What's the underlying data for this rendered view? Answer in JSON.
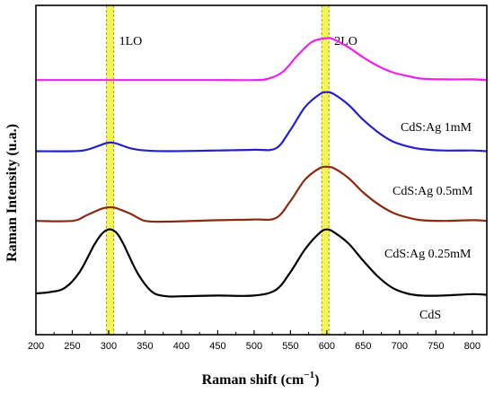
{
  "chart_data": {
    "type": "line",
    "xlabel": "Raman shift (cm",
    "xlabel_sup": "−1",
    "xlabel_close": ")",
    "ylabel": "Raman Intensity (u.a.)",
    "xlim": [
      200,
      820
    ],
    "x_ticks": [
      200,
      250,
      300,
      350,
      400,
      450,
      500,
      550,
      600,
      650,
      700,
      750,
      800
    ],
    "y_ticks_shown": false,
    "grid": false,
    "band_color": "#f2f23c",
    "band_edge_color": "#a8a800",
    "bands": [
      {
        "label": "1LO",
        "x": 302
      },
      {
        "label": "2LO",
        "x": 598
      }
    ],
    "series": [
      {
        "name": "CdS",
        "color": "#000000",
        "offset": 0,
        "x": [
          200,
          220,
          240,
          260,
          280,
          290,
          300,
          310,
          320,
          340,
          360,
          380,
          400,
          450,
          500,
          530,
          550,
          570,
          590,
          600,
          610,
          630,
          650,
          670,
          690,
          710,
          730,
          760,
          800,
          820
        ],
        "y": [
          0.1,
          0.12,
          0.18,
          0.4,
          0.78,
          0.93,
          1.0,
          0.96,
          0.8,
          0.38,
          0.12,
          0.06,
          0.06,
          0.07,
          0.07,
          0.15,
          0.4,
          0.72,
          0.95,
          1.0,
          0.96,
          0.8,
          0.56,
          0.34,
          0.18,
          0.1,
          0.07,
          0.07,
          0.09,
          0.08
        ]
      },
      {
        "name": "CdS:Ag 0.25mM",
        "color": "#8b2a10",
        "offset": 1.0,
        "x": [
          200,
          250,
          270,
          290,
          300,
          310,
          330,
          350,
          380,
          450,
          500,
          530,
          550,
          570,
          590,
          600,
          610,
          630,
          650,
          670,
          690,
          710,
          730,
          760,
          800,
          820
        ],
        "y": [
          0.12,
          0.12,
          0.2,
          0.29,
          0.31,
          0.3,
          0.22,
          0.12,
          0.11,
          0.13,
          0.14,
          0.16,
          0.4,
          0.7,
          0.86,
          0.88,
          0.86,
          0.72,
          0.52,
          0.36,
          0.24,
          0.17,
          0.13,
          0.12,
          0.13,
          0.12
        ]
      },
      {
        "name": "CdS:Ag 0.5mM",
        "color": "#2222cc",
        "offset": 2.0,
        "x": [
          200,
          250,
          270,
          290,
          300,
          310,
          330,
          350,
          380,
          450,
          500,
          530,
          550,
          570,
          590,
          600,
          610,
          630,
          650,
          670,
          690,
          710,
          730,
          760,
          800,
          820
        ],
        "y": [
          0.1,
          0.1,
          0.12,
          0.19,
          0.22,
          0.21,
          0.14,
          0.11,
          0.1,
          0.11,
          0.12,
          0.14,
          0.4,
          0.72,
          0.9,
          0.93,
          0.9,
          0.75,
          0.54,
          0.37,
          0.24,
          0.17,
          0.13,
          0.11,
          0.11,
          0.1
        ]
      },
      {
        "name": "CdS:Ag 1mM",
        "color": "#ee22ee",
        "offset": 3.0,
        "x": [
          200,
          250,
          300,
          350,
          400,
          450,
          500,
          520,
          540,
          560,
          580,
          600,
          610,
          630,
          650,
          670,
          690,
          710,
          730,
          760,
          800,
          820
        ],
        "y": [
          0.1,
          0.1,
          0.1,
          0.1,
          0.1,
          0.1,
          0.1,
          0.12,
          0.22,
          0.45,
          0.64,
          0.69,
          0.67,
          0.56,
          0.42,
          0.3,
          0.21,
          0.16,
          0.12,
          0.11,
          0.11,
          0.1
        ]
      }
    ]
  }
}
